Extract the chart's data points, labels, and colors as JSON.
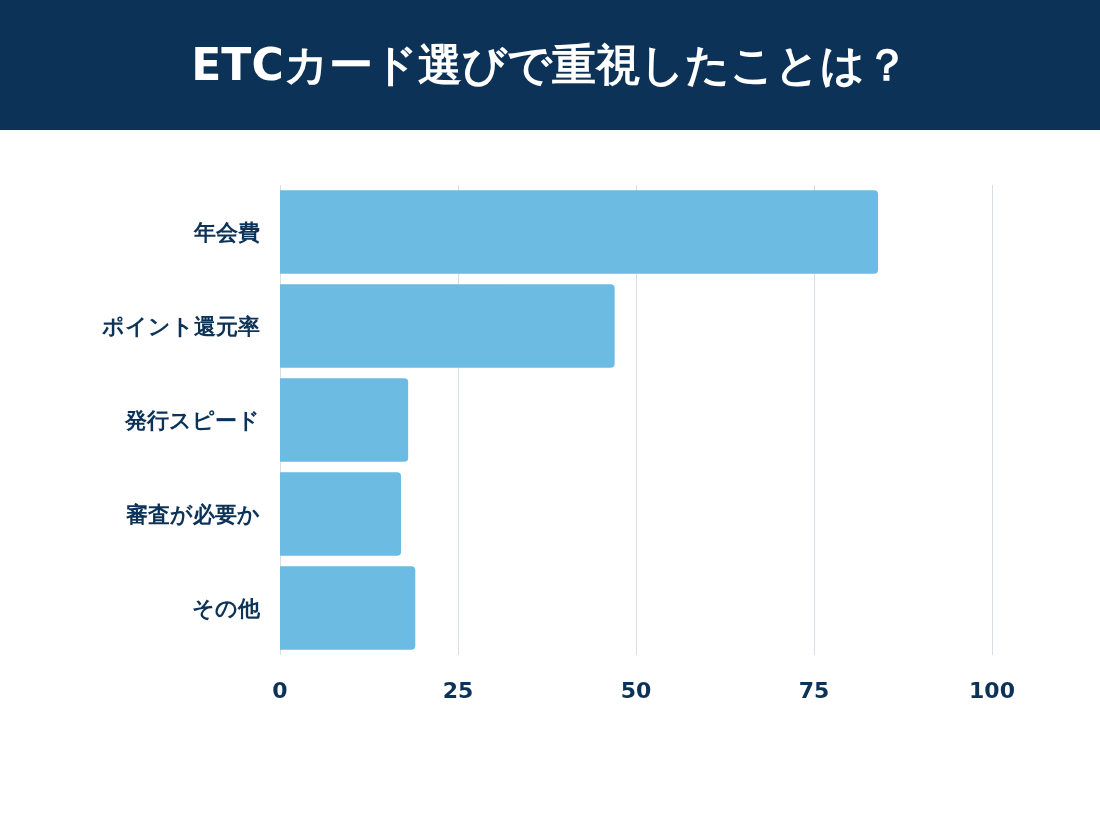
{
  "chart_data": {
    "type": "bar",
    "title": "ETCカード選びで重視したことは？",
    "orientation": "horizontal",
    "categories": [
      "年会費",
      "ポイント還元率",
      "発行スピード",
      "審査が必要か",
      "その他"
    ],
    "values": [
      84,
      47,
      18,
      17,
      19
    ],
    "color": "#6bbbe2",
    "xlim": [
      0,
      100
    ],
    "xticks": [
      0,
      25,
      50,
      75,
      100
    ],
    "grid": "x"
  }
}
